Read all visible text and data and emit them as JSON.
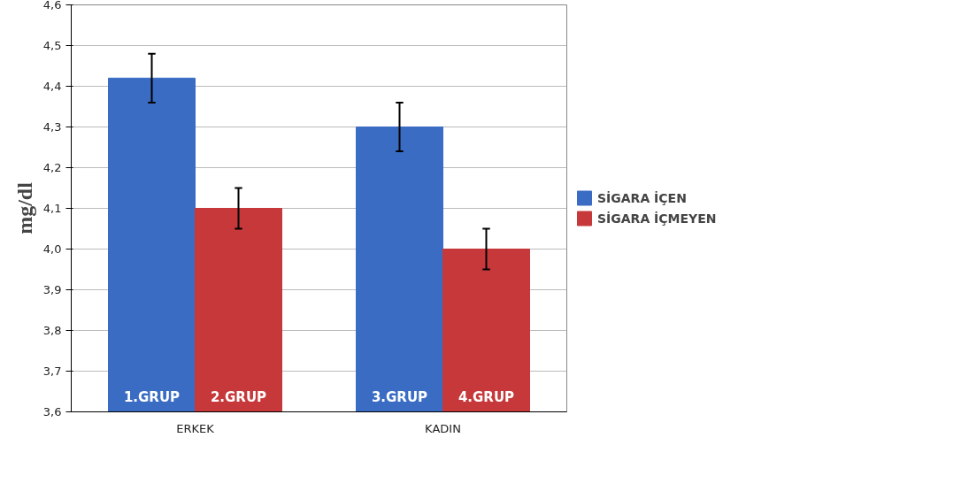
{
  "chart_data": {
    "type": "bar",
    "ylabel": "mg/dl",
    "categories": [
      "ERKEK",
      "KADIN"
    ],
    "series": [
      {
        "name": "SİGARA İÇEN",
        "color": "#3a6cc4",
        "values": [
          4.42,
          4.3
        ],
        "errors": [
          0.06,
          0.06
        ]
      },
      {
        "name": "SİGARA İÇMEYEN",
        "color": "#c6383a",
        "values": [
          4.1,
          4.0
        ],
        "errors": [
          0.05,
          0.05
        ]
      }
    ],
    "ylim": [
      3.6,
      4.6
    ],
    "yticks": [
      {
        "value": 3.6,
        "label": "3,6"
      },
      {
        "value": 3.7,
        "label": "3,7"
      },
      {
        "value": 3.8,
        "label": "3,8"
      },
      {
        "value": 3.9,
        "label": "3,9"
      },
      {
        "value": 4.0,
        "label": "4,0"
      },
      {
        "value": 4.1,
        "label": "4,1"
      },
      {
        "value": 4.2,
        "label": "4,2"
      },
      {
        "value": 4.3,
        "label": "4,3"
      },
      {
        "value": 4.4,
        "label": "4,4"
      },
      {
        "value": 4.5,
        "label": "4,5"
      },
      {
        "value": 4.6,
        "label": "4,6"
      }
    ],
    "annotations": [
      "1.GRUP",
      "2.GRUP",
      "3.GRUP",
      "4.GRUP"
    ],
    "grid": "y",
    "legend": "right"
  }
}
